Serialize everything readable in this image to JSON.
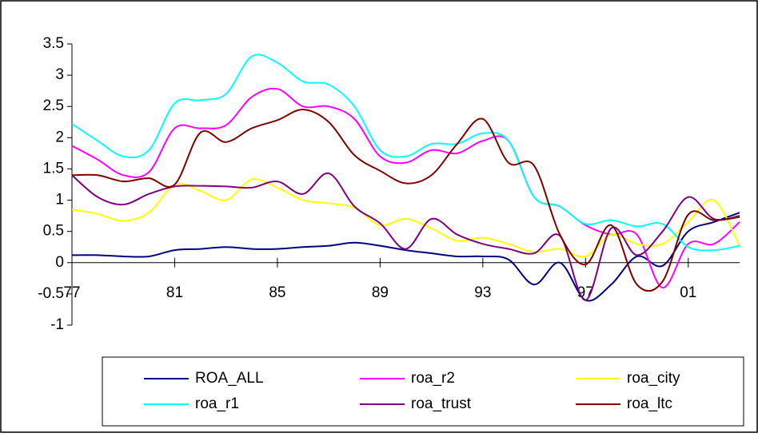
{
  "chart_data": {
    "type": "line",
    "x": [
      77,
      78,
      79,
      80,
      81,
      82,
      83,
      84,
      85,
      86,
      87,
      88,
      89,
      90,
      91,
      92,
      93,
      94,
      95,
      96,
      97,
      98,
      99,
      100,
      101,
      102,
      103
    ],
    "series": [
      {
        "name": "ROA_ALL",
        "color": "#000080",
        "values": [
          0.12,
          0.12,
          0.1,
          0.1,
          0.2,
          0.22,
          0.25,
          0.22,
          0.22,
          0.25,
          0.27,
          0.32,
          0.27,
          0.2,
          0.15,
          0.1,
          0.1,
          0.05,
          -0.35,
          0.0,
          -0.6,
          -0.35,
          0.1,
          -0.05,
          0.5,
          0.65,
          0.8
        ]
      },
      {
        "name": "roa_r2",
        "color": "#ff00ff",
        "values": [
          1.87,
          1.65,
          1.4,
          1.45,
          2.15,
          2.15,
          2.2,
          2.65,
          2.78,
          2.5,
          2.5,
          2.3,
          1.7,
          1.6,
          1.8,
          1.75,
          1.95,
          1.95,
          1.05,
          0.9,
          0.6,
          0.45,
          0.45,
          -0.4,
          0.3,
          0.3,
          0.65
        ]
      },
      {
        "name": "roa_city",
        "color": "#ffff00",
        "values": [
          0.85,
          0.78,
          0.67,
          0.8,
          1.25,
          1.15,
          1.0,
          1.33,
          1.2,
          1.0,
          0.95,
          0.88,
          0.6,
          0.7,
          0.55,
          0.35,
          0.4,
          0.3,
          0.17,
          0.22,
          0.1,
          0.45,
          0.3,
          0.3,
          0.65,
          1.0,
          0.27
        ]
      },
      {
        "name": "roa_r1",
        "color": "#00ffff",
        "values": [
          2.22,
          1.95,
          1.7,
          1.8,
          2.55,
          2.6,
          2.7,
          3.3,
          3.2,
          2.9,
          2.85,
          2.5,
          1.8,
          1.7,
          1.9,
          1.9,
          2.07,
          1.95,
          1.05,
          0.9,
          0.62,
          0.68,
          0.58,
          0.62,
          0.25,
          0.2,
          0.27
        ]
      },
      {
        "name": "roa_trust",
        "color": "#800080",
        "values": [
          1.4,
          1.05,
          0.93,
          1.1,
          1.22,
          1.23,
          1.22,
          1.2,
          1.3,
          1.1,
          1.43,
          0.9,
          0.63,
          0.22,
          0.7,
          0.45,
          0.3,
          0.22,
          0.15,
          0.43,
          -0.6,
          0.55,
          0.12,
          0.5,
          1.05,
          0.7,
          0.75
        ]
      },
      {
        "name": "roa_ltc",
        "color": "#800000",
        "values": [
          1.4,
          1.4,
          1.3,
          1.35,
          1.25,
          2.08,
          1.93,
          2.15,
          2.28,
          2.45,
          2.25,
          1.72,
          1.47,
          1.27,
          1.4,
          1.9,
          2.3,
          1.6,
          1.55,
          0.45,
          -0.03,
          0.6,
          -0.35,
          -0.3,
          0.77,
          0.68,
          0.73
        ]
      }
    ],
    "xlim": [
      77,
      103
    ],
    "xticks": [
      77,
      81,
      85,
      89,
      93,
      97,
      {
        "value": 101,
        "label": "01"
      }
    ],
    "ylim": [
      -1,
      3.5
    ],
    "yticks": [
      -1,
      -0.5,
      0,
      0.5,
      1,
      1.5,
      2,
      2.5,
      3,
      3.5
    ],
    "grid": false
  }
}
